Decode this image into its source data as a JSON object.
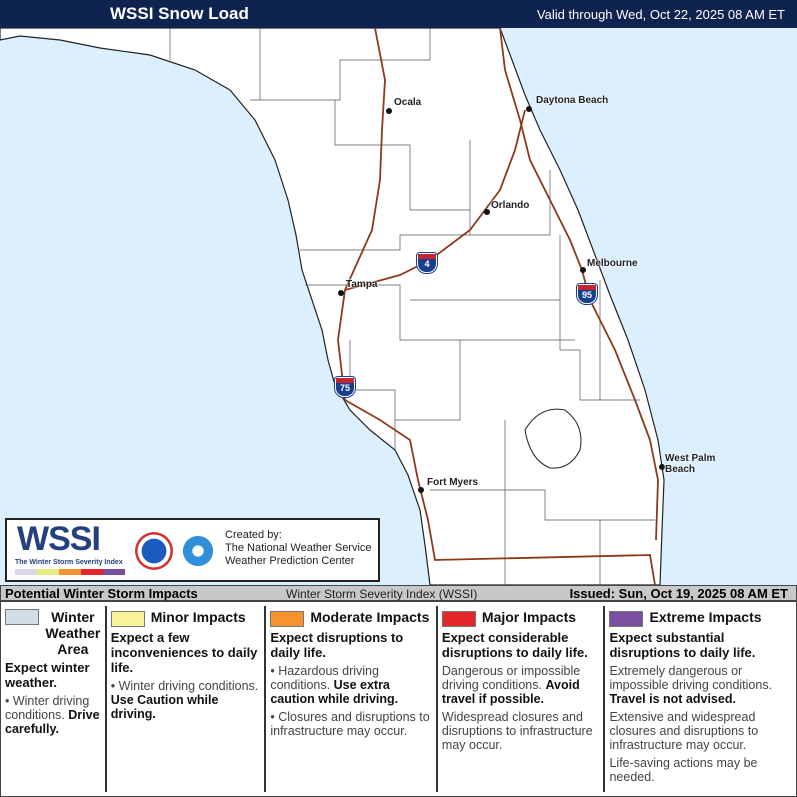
{
  "header": {
    "title": "WSSI Snow Load",
    "valid": "Valid through Wed, Oct 22, 2025 08 AM ET"
  },
  "map": {
    "water_color": "#dcefff",
    "land_color": "#ffffff",
    "interstate_color": "#8b3a1a",
    "cities": [
      {
        "name": "Ocala"
      },
      {
        "name": "Daytona Beach"
      },
      {
        "name": "Orlando"
      },
      {
        "name": "Melbourne"
      },
      {
        "name": "Tampa"
      },
      {
        "name": "Fort Myers"
      },
      {
        "name": "West Palm Beach"
      }
    ],
    "interstates": [
      "4",
      "95",
      "75"
    ]
  },
  "logo": {
    "wssi": "WSSI",
    "tm": "™",
    "subtitle": "The Winter Storm Severity Index",
    "created_by": "Created by:",
    "org1": "The National Weather Service",
    "org2": "Weather Prediction Center"
  },
  "infobar": {
    "left": "Potential Winter Storm Impacts",
    "center": "Winter Storm Severity Index (WSSI)",
    "issued": "Issued: Sun, Oct 19, 2025 08 AM ET"
  },
  "legend": [
    {
      "label": "Winter Weather Area",
      "color": "#d3dde6",
      "expect": "Expect winter weather.",
      "bullets": [
        {
          "text": "Winter driving conditions.",
          "bold": "Drive carefully."
        }
      ]
    },
    {
      "label": "Minor Impacts",
      "color": "#f6f39a",
      "expect": "Expect a few inconveniences to daily life.",
      "bullets": [
        {
          "text": "Winter driving conditions.",
          "bold": "Use Caution while driving."
        }
      ]
    },
    {
      "label": "Moderate Impacts",
      "color": "#f7932f",
      "expect": "Expect disruptions to daily life.",
      "bullets": [
        {
          "text": "Hazardous driving conditions.",
          "bold": "Use extra caution while driving."
        },
        {
          "text": "Closures and disruptions to infrastructure may occur.",
          "bold": ""
        }
      ]
    },
    {
      "label": "Major Impacts",
      "color": "#e3262c",
      "expect": "Expect considerable disruptions to daily life.",
      "bullets": [
        {
          "text": "Dangerous or impossible driving conditions.",
          "bold": "Avoid travel if possible."
        },
        {
          "text": "Widespread closures and disruptions to infrastructure may occur.",
          "bold": ""
        }
      ]
    },
    {
      "label": "Extreme Impacts",
      "color": "#7b4fa0",
      "expect": "Expect substantial disruptions to daily life.",
      "bullets": [
        {
          "text": "Extremely dangerous or impossible driving conditions.",
          "bold": "Travel is not advised."
        },
        {
          "text": "Extensive and widespread closures and disruptions to infrastructure may occur.",
          "bold": ""
        },
        {
          "text": "Life-saving actions may be needed.",
          "bold": ""
        }
      ]
    }
  ]
}
